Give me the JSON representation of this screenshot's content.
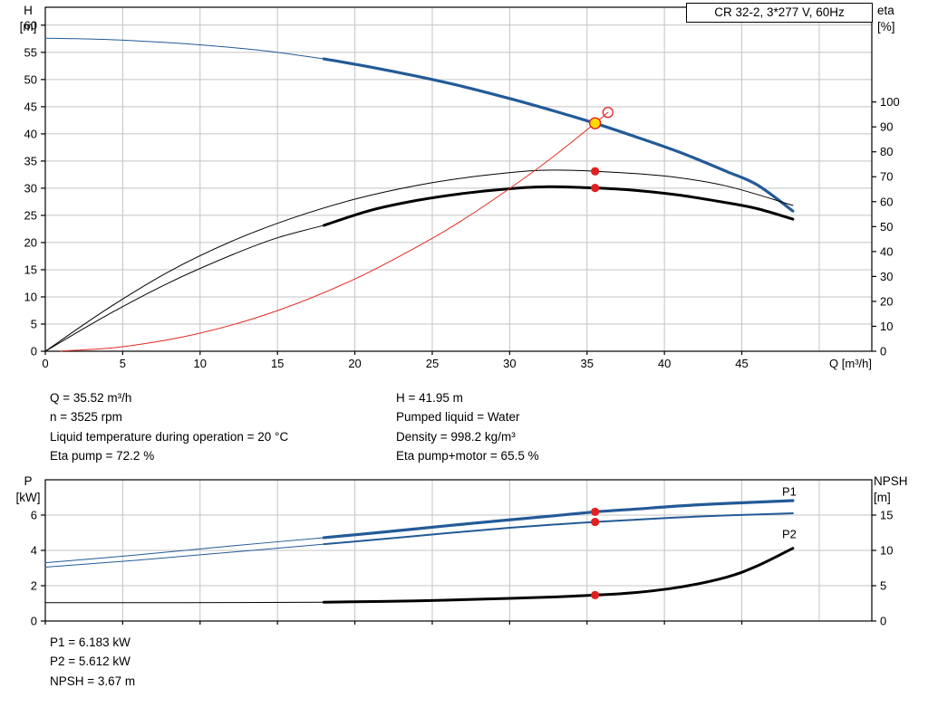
{
  "title_box": {
    "label": "CR 32-2, 3*277 V, 60Hz"
  },
  "axes": {
    "top_left": [
      "H",
      "[m]"
    ],
    "top_right": [
      "eta",
      "[%]"
    ],
    "bottom_left": [
      "P",
      "[kW]"
    ],
    "bottom_right": [
      "NPSH",
      "[m]"
    ]
  },
  "info_top": {
    "left": [
      "Q = 35.52 m³/h",
      "n = 3525 rpm",
      "Liquid temperature during operation = 20 °C",
      "Eta pump = 72.2 %"
    ],
    "right": [
      "H = 41.95 m",
      "Pumped liquid = Water",
      "Density = 998.2 kg/m³",
      "Eta pump+motor = 65.5 %"
    ]
  },
  "info_bottom": [
    "P1 = 6.183 kW",
    "P2 = 5.612 kW",
    "NPSH = 3.67 m"
  ],
  "colors": {
    "curve_blue": "#235a97",
    "curve_black": "#000000",
    "curve_red": "#e22b22",
    "grid": "#c4c4c4",
    "marker_red": "#e02020",
    "marker_yellow": "#ffd900",
    "label_blue": "#235a97"
  },
  "chart_data": [
    {
      "type": "line",
      "title": "CR 32-2, 3*277 V, 60Hz",
      "x": {
        "min": 0,
        "max": 53.4,
        "ticks": [
          0,
          5,
          10,
          15,
          20,
          25,
          30,
          35,
          40,
          45
        ],
        "extra_grid": [
          50
        ],
        "label": "Q [m³/h]",
        "show_labels": true
      },
      "y_left": {
        "min": 0,
        "max": 63.3,
        "ticks": [
          0,
          5,
          10,
          15,
          20,
          25,
          30,
          35,
          40,
          45,
          50,
          55,
          60
        ],
        "label": "H [m]"
      },
      "y_right": {
        "min": 0,
        "max": 138,
        "ticks": [
          0,
          10,
          20,
          30,
          40,
          50,
          60,
          70,
          80,
          90,
          100
        ],
        "label": "eta [%]"
      },
      "series": [
        {
          "name": "qh-lead",
          "axis": "left",
          "color": "#235a97",
          "width": 1,
          "points": [
            [
              0,
              57.6
            ],
            [
              3,
              57.45
            ],
            [
              6,
              57.1
            ],
            [
              9,
              56.6
            ],
            [
              12,
              55.9
            ],
            [
              15,
              55.0
            ],
            [
              18,
              53.8
            ]
          ]
        },
        {
          "name": "qh-main",
          "axis": "left",
          "color": "#235a97",
          "width": 3.2,
          "points": [
            [
              18,
              53.8
            ],
            [
              21,
              52.3
            ],
            [
              24,
              50.6
            ],
            [
              27,
              48.7
            ],
            [
              30,
              46.5
            ],
            [
              33,
              44.1
            ],
            [
              35.52,
              41.95
            ],
            [
              38,
              39.6
            ],
            [
              41,
              36.6
            ],
            [
              44,
              33.1
            ],
            [
              46,
              30.6
            ],
            [
              48.3,
              25.8
            ]
          ]
        },
        {
          "name": "eta-pump",
          "axis": "right",
          "color": "#000000",
          "width": 1,
          "points": [
            [
              0,
              0
            ],
            [
              4,
              17
            ],
            [
              8,
              32
            ],
            [
              12,
              44
            ],
            [
              16,
              53.5
            ],
            [
              20,
              61
            ],
            [
              24,
              66.5
            ],
            [
              28,
              70.3
            ],
            [
              32,
              72.6
            ],
            [
              35.52,
              72.2
            ],
            [
              40,
              70.3
            ],
            [
              44,
              66.3
            ],
            [
              48.3,
              58.5
            ]
          ]
        },
        {
          "name": "eta-pump-motor-lead",
          "axis": "right",
          "color": "#000000",
          "width": 1,
          "points": [
            [
              0,
              0
            ],
            [
              4,
              14.5
            ],
            [
              8,
              27.5
            ],
            [
              12,
              38.5
            ],
            [
              15,
              45.5
            ],
            [
              18,
              50.5
            ]
          ]
        },
        {
          "name": "eta-pump-motor-main",
          "axis": "right",
          "color": "#000000",
          "width": 3,
          "points": [
            [
              18,
              50.5
            ],
            [
              21,
              56.5
            ],
            [
              24,
              60.5
            ],
            [
              27,
              63.3
            ],
            [
              30,
              65.2
            ],
            [
              32.5,
              66.0
            ],
            [
              35.52,
              65.5
            ],
            [
              38,
              64.6
            ],
            [
              41,
              62.6
            ],
            [
              44,
              59.6
            ],
            [
              46,
              57.2
            ],
            [
              48.3,
              53.0
            ]
          ]
        },
        {
          "name": "system-curve",
          "axis": "left",
          "color": "#e22b22",
          "width": 1,
          "points": [
            [
              1,
              0.03
            ],
            [
              5,
              0.83
            ],
            [
              10,
              3.33
            ],
            [
              15,
              7.48
            ],
            [
              20,
              13.3
            ],
            [
              25,
              20.78
            ],
            [
              28,
              26.07
            ],
            [
              31,
              31.96
            ],
            [
              33,
              36.21
            ],
            [
              35.52,
              41.95
            ],
            [
              36.35,
              43.95
            ]
          ]
        }
      ],
      "markers": [
        {
          "type": "open",
          "axis": "left",
          "x": 36.35,
          "y": 43.95
        },
        {
          "type": "dot",
          "axis": "right",
          "x": 35.52,
          "y": 72.2
        },
        {
          "type": "dot",
          "axis": "right",
          "x": 35.52,
          "y": 65.5
        },
        {
          "type": "duty",
          "axis": "left",
          "x": 35.52,
          "y": 41.95
        }
      ],
      "curve_labels": []
    },
    {
      "type": "line",
      "title": "",
      "x": {
        "min": 0,
        "max": 53.4,
        "ticks": [
          0,
          5,
          10,
          15,
          20,
          25,
          30,
          35,
          40,
          45
        ],
        "extra_grid": [
          50
        ],
        "label": "",
        "show_labels": false
      },
      "y_left": {
        "min": 0,
        "max": 8,
        "ticks": [
          0,
          2,
          4,
          6
        ],
        "label": "P [kW]"
      },
      "y_right": {
        "min": 0,
        "max": 20,
        "ticks": [
          0,
          5,
          10,
          15
        ],
        "label": "NPSH [m]"
      },
      "series": [
        {
          "name": "p1-lead",
          "axis": "left",
          "color": "#235a97",
          "width": 1,
          "points": [
            [
              0,
              3.3
            ],
            [
              6,
              3.75
            ],
            [
              12,
              4.25
            ],
            [
              18,
              4.72
            ]
          ]
        },
        {
          "name": "p1-main",
          "axis": "left",
          "color": "#235a97",
          "width": 3.2,
          "points": [
            [
              18,
              4.72
            ],
            [
              22,
              5.05
            ],
            [
              26,
              5.4
            ],
            [
              30,
              5.73
            ],
            [
              33,
              5.97
            ],
            [
              35.52,
              6.183
            ],
            [
              38,
              6.33
            ],
            [
              41,
              6.52
            ],
            [
              44,
              6.66
            ],
            [
              48.3,
              6.82
            ]
          ]
        },
        {
          "name": "p2-lead",
          "axis": "left",
          "color": "#235a97",
          "width": 1,
          "points": [
            [
              0,
              3.05
            ],
            [
              6,
              3.45
            ],
            [
              12,
              3.9
            ],
            [
              18,
              4.35
            ]
          ]
        },
        {
          "name": "p2-main",
          "axis": "left",
          "color": "#235a97",
          "width": 2,
          "points": [
            [
              18,
              4.35
            ],
            [
              22,
              4.66
            ],
            [
              26,
              4.98
            ],
            [
              30,
              5.28
            ],
            [
              33,
              5.47
            ],
            [
              35.52,
              5.612
            ],
            [
              38,
              5.73
            ],
            [
              41,
              5.87
            ],
            [
              44,
              5.98
            ],
            [
              48.3,
              6.1
            ]
          ]
        },
        {
          "name": "npsh-lead",
          "axis": "right",
          "color": "#000000",
          "width": 1,
          "points": [
            [
              0,
              2.6
            ],
            [
              9,
              2.6
            ],
            [
              18,
              2.66
            ]
          ]
        },
        {
          "name": "npsh-main",
          "axis": "right",
          "color": "#000000",
          "width": 3,
          "points": [
            [
              18,
              2.66
            ],
            [
              24,
              2.86
            ],
            [
              30,
              3.2
            ],
            [
              33,
              3.42
            ],
            [
              35.52,
              3.67
            ],
            [
              38,
              4.0
            ],
            [
              41,
              4.8
            ],
            [
              44,
              6.2
            ],
            [
              46,
              7.8
            ],
            [
              48.3,
              10.3
            ]
          ]
        }
      ],
      "markers": [
        {
          "type": "dot",
          "axis": "left",
          "x": 35.52,
          "y": 6.183
        },
        {
          "type": "dot",
          "axis": "left",
          "x": 35.52,
          "y": 5.612
        },
        {
          "type": "dot",
          "axis": "right",
          "x": 35.52,
          "y": 3.67
        }
      ],
      "curve_labels": [
        {
          "text": "P1",
          "x": 47.6,
          "y": 7.1,
          "color": "#235a97"
        },
        {
          "text": "P2",
          "x": 47.6,
          "y": 4.7,
          "color": "#235a97"
        }
      ]
    }
  ]
}
